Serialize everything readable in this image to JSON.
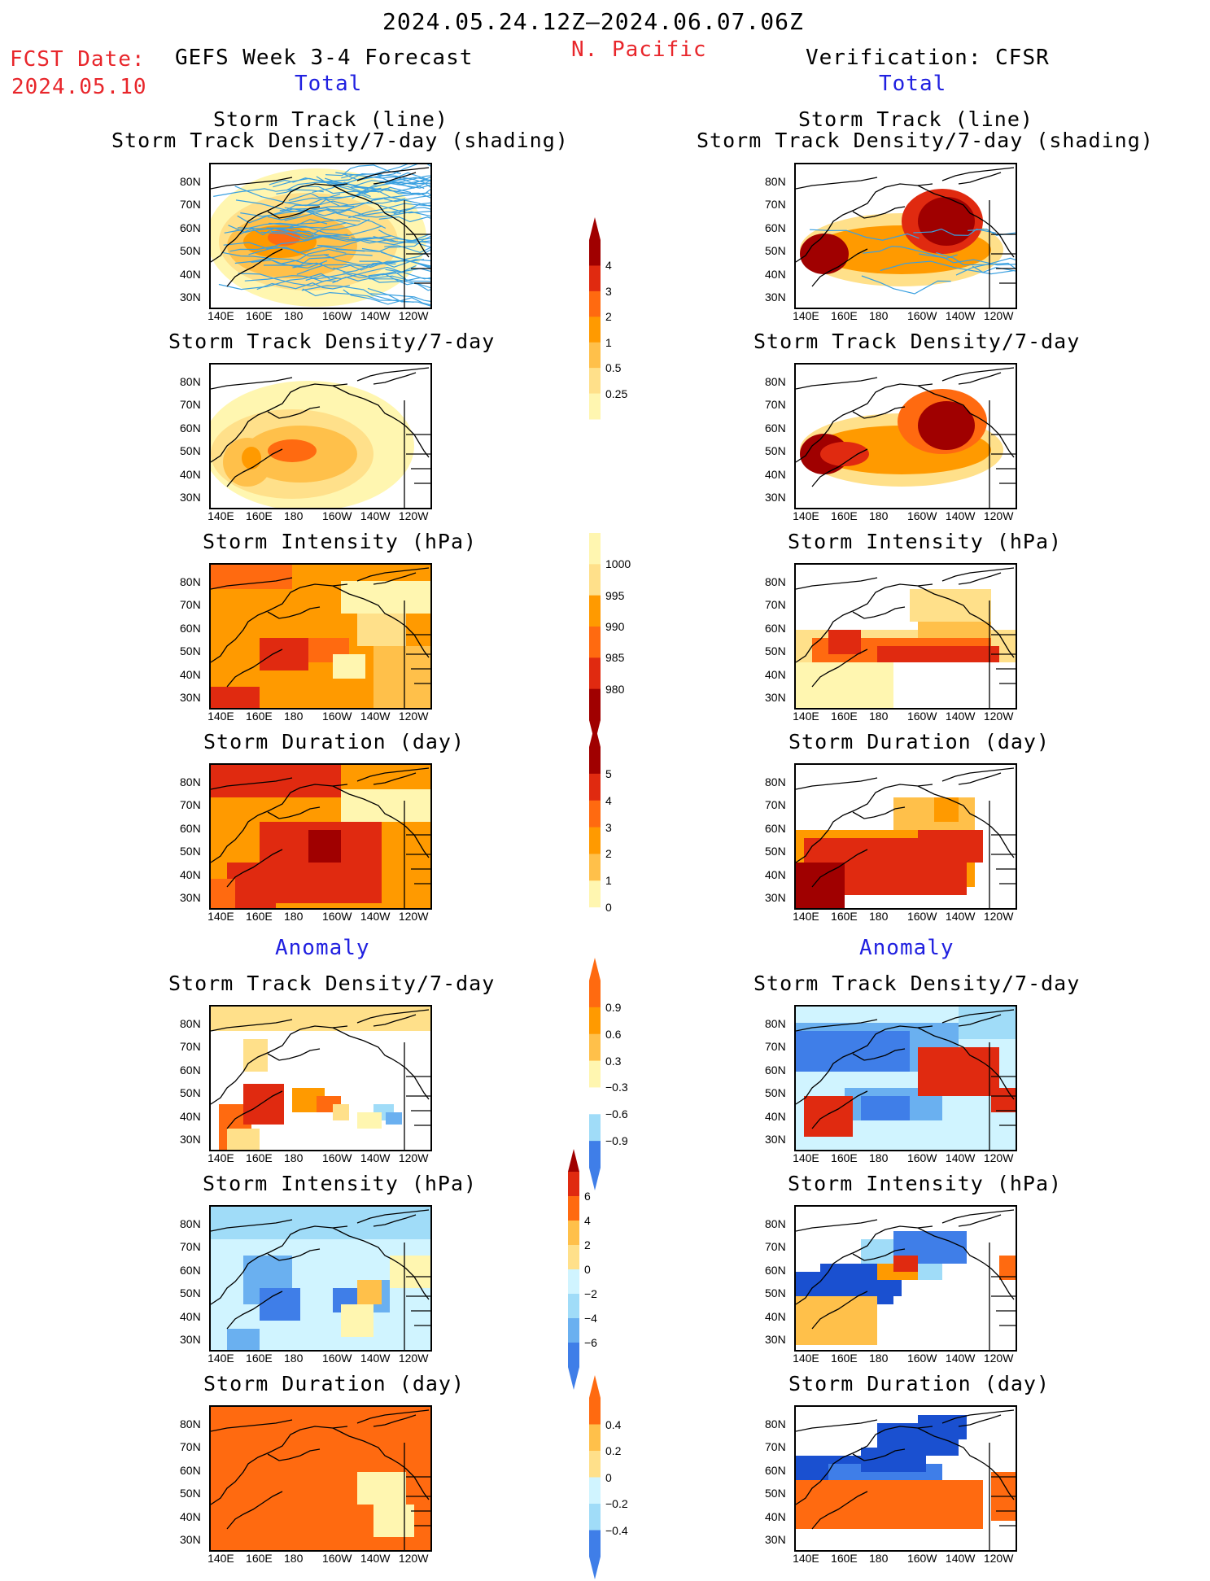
{
  "header": {
    "date_range": "2024.05.24.12Z–2024.06.07.06Z",
    "region": "N. Pacific",
    "fcst_label": "FCST Date:",
    "fcst_date": "2024.05.10",
    "left_title": "GEFS Week 3-4 Forecast",
    "right_title": "Verification: CFSR",
    "total_label": "Total",
    "anomaly_label": "Anomaly"
  },
  "panel_titles": {
    "track_line": "Storm Track (line)",
    "track_shading": "Storm Track Density/7-day (shading)",
    "density": "Storm Track Density/7-day",
    "intensity": "Storm Intensity (hPa)",
    "duration": "Storm Duration (day)"
  },
  "axes": {
    "lat_labels": [
      "80N",
      "70N",
      "60N",
      "50N",
      "40N",
      "30N"
    ],
    "lon_labels": [
      "140E",
      "160E",
      "180",
      "160W",
      "140W",
      "120W"
    ]
  },
  "colorbars": {
    "density_total": [
      "4",
      "3",
      "2",
      "1",
      "0.5",
      "0.25"
    ],
    "intensity_total": [
      "1000",
      "995",
      "990",
      "985",
      "980"
    ],
    "duration_total": [
      "5",
      "4",
      "3",
      "2",
      "1",
      "0"
    ],
    "density_anom": [
      "0.9",
      "0.6",
      "0.3",
      "−0.3",
      "−0.6",
      "−0.9"
    ],
    "intensity_anom": [
      "6",
      "4",
      "2",
      "0",
      "−2",
      "−4",
      "−6"
    ],
    "duration_anom": [
      "0.4",
      "0.2",
      "0",
      "−0.2",
      "−0.4"
    ]
  },
  "colors": {
    "warm": [
      "#fff6b0",
      "#ffe08a",
      "#ffc04a",
      "#ff9a00",
      "#ff6a10",
      "#e02a10",
      "#a00000"
    ],
    "cool": [
      "#d0f4ff",
      "#a0dcf8",
      "#6ab0f0",
      "#3f7ee8",
      "#1a50d0"
    ],
    "track_line": "#3aa0e0",
    "red_text": "#e8262b",
    "blue_text": "#2020e0"
  }
}
